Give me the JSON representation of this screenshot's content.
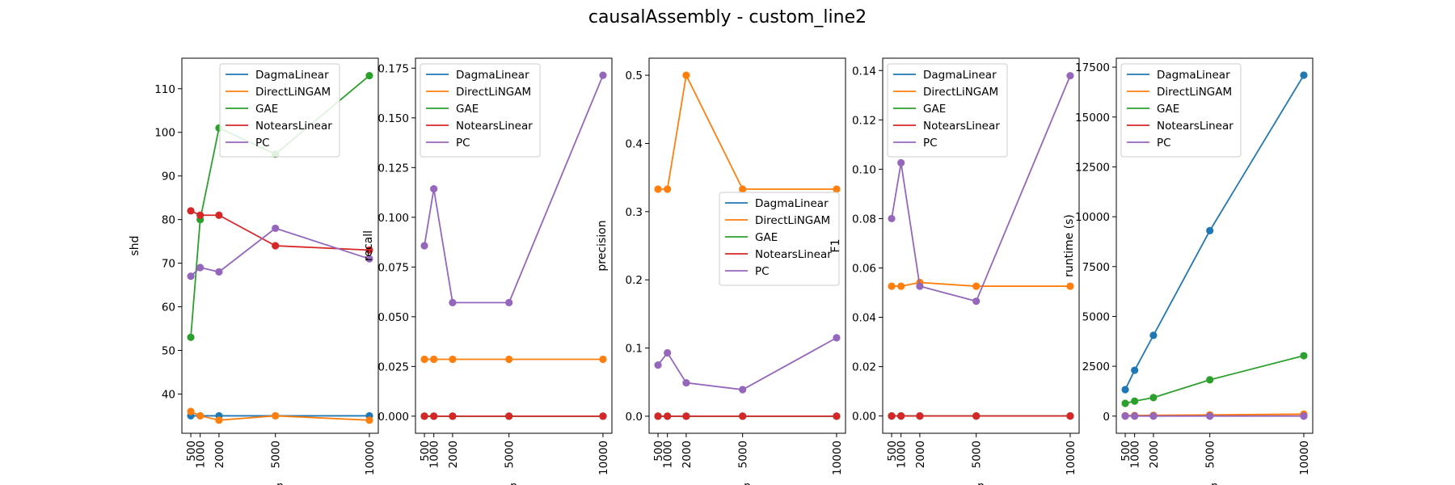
{
  "figure": {
    "title": "causalAssembly - custom_line2"
  },
  "series_colors": {
    "DagmaLinear": "#1f77b4",
    "DirectLiNGAM": "#ff7f0e",
    "GAE": "#2ca02c",
    "NotearsLinear": "#d62728",
    "PC": "#9467bd"
  },
  "chart_data": [
    {
      "type": "line",
      "ylabel": "shd",
      "xlabel": "n",
      "x": [
        500,
        1000,
        2000,
        5000,
        10000
      ],
      "ylim": [
        31,
        117
      ],
      "yticks": [
        40,
        50,
        60,
        70,
        80,
        90,
        100,
        110
      ],
      "legend_position": "top-right",
      "series": [
        {
          "name": "DagmaLinear",
          "values": [
            35,
            35,
            35,
            35,
            35
          ]
        },
        {
          "name": "DirectLiNGAM",
          "values": [
            36,
            35,
            34,
            35,
            34
          ]
        },
        {
          "name": "GAE",
          "values": [
            53,
            80,
            101,
            95,
            113
          ]
        },
        {
          "name": "NotearsLinear",
          "values": [
            82,
            81,
            81,
            74,
            73
          ]
        },
        {
          "name": "PC",
          "values": [
            67,
            69,
            68,
            78,
            71
          ]
        }
      ]
    },
    {
      "type": "line",
      "ylabel": "recall",
      "xlabel": "n",
      "x": [
        500,
        1000,
        2000,
        5000,
        10000
      ],
      "ylim": [
        -0.0086,
        0.18
      ],
      "yticks": [
        0.0,
        0.025,
        0.05,
        0.075,
        0.1,
        0.125,
        0.15,
        0.175
      ],
      "ytick_labels": [
        "0.000",
        "0.025",
        "0.050",
        "0.075",
        "0.100",
        "0.125",
        "0.150",
        "0.175"
      ],
      "legend_position": "top-left",
      "series": [
        {
          "name": "DagmaLinear",
          "values": [
            0,
            0,
            0,
            0,
            0
          ]
        },
        {
          "name": "DirectLiNGAM",
          "values": [
            0.0286,
            0.0286,
            0.0286,
            0.0286,
            0.0286
          ]
        },
        {
          "name": "GAE",
          "values": [
            0,
            0,
            0,
            0,
            0
          ]
        },
        {
          "name": "NotearsLinear",
          "values": [
            0,
            0,
            0,
            0,
            0
          ]
        },
        {
          "name": "PC",
          "values": [
            0.0857,
            0.1143,
            0.0571,
            0.0571,
            0.1714
          ]
        }
      ]
    },
    {
      "type": "line",
      "ylabel": "precision",
      "xlabel": "n",
      "x": [
        500,
        1000,
        2000,
        5000,
        10000
      ],
      "ylim": [
        -0.025,
        0.525
      ],
      "yticks": [
        0.0,
        0.1,
        0.2,
        0.3,
        0.4,
        0.5
      ],
      "ytick_labels": [
        "0.0",
        "0.1",
        "0.2",
        "0.3",
        "0.4",
        "0.5"
      ],
      "legend_position": "center-right",
      "series": [
        {
          "name": "DagmaLinear",
          "values": [
            0,
            0,
            0,
            0,
            0
          ]
        },
        {
          "name": "DirectLiNGAM",
          "values": [
            0.333,
            0.333,
            0.5,
            0.333,
            0.333
          ]
        },
        {
          "name": "GAE",
          "values": [
            0,
            0,
            0,
            0,
            0
          ]
        },
        {
          "name": "NotearsLinear",
          "values": [
            0,
            0,
            0,
            0,
            0
          ]
        },
        {
          "name": "PC",
          "values": [
            0.075,
            0.093,
            0.049,
            0.039,
            0.115
          ]
        }
      ]
    },
    {
      "type": "line",
      "ylabel": "F1",
      "xlabel": "n",
      "x": [
        500,
        1000,
        2000,
        5000,
        10000
      ],
      "ylim": [
        -0.007,
        0.145
      ],
      "yticks": [
        0.0,
        0.02,
        0.04,
        0.06,
        0.08,
        0.1,
        0.12,
        0.14
      ],
      "ytick_labels": [
        "0.00",
        "0.02",
        "0.04",
        "0.06",
        "0.08",
        "0.10",
        "0.12",
        "0.14"
      ],
      "legend_position": "top-left",
      "series": [
        {
          "name": "DagmaLinear",
          "values": [
            0,
            0,
            0,
            0,
            0
          ]
        },
        {
          "name": "DirectLiNGAM",
          "values": [
            0.0526,
            0.0526,
            0.0541,
            0.0526,
            0.0526
          ]
        },
        {
          "name": "GAE",
          "values": [
            0,
            0,
            0,
            0,
            0
          ]
        },
        {
          "name": "NotearsLinear",
          "values": [
            0,
            0,
            0,
            0,
            0
          ]
        },
        {
          "name": "PC",
          "values": [
            0.08,
            0.1026,
            0.0526,
            0.0465,
            0.1379
          ]
        }
      ]
    },
    {
      "type": "line",
      "ylabel": "runtime (s)",
      "xlabel": "n",
      "x": [
        500,
        1000,
        2000,
        5000,
        10000
      ],
      "ylim": [
        -860,
        17950
      ],
      "yticks": [
        0,
        2500,
        5000,
        7500,
        10000,
        12500,
        15000,
        17500
      ],
      "legend_position": "top-left",
      "series": [
        {
          "name": "DagmaLinear",
          "values": [
            1330,
            2300,
            4050,
            9300,
            17100
          ]
        },
        {
          "name": "DirectLiNGAM",
          "values": [
            20,
            30,
            40,
            60,
            100
          ]
        },
        {
          "name": "GAE",
          "values": [
            640,
            750,
            930,
            1820,
            3030
          ]
        },
        {
          "name": "NotearsLinear",
          "values": [
            5,
            5,
            5,
            5,
            5
          ]
        },
        {
          "name": "PC",
          "values": [
            2,
            2,
            2,
            2,
            2
          ]
        }
      ]
    }
  ]
}
